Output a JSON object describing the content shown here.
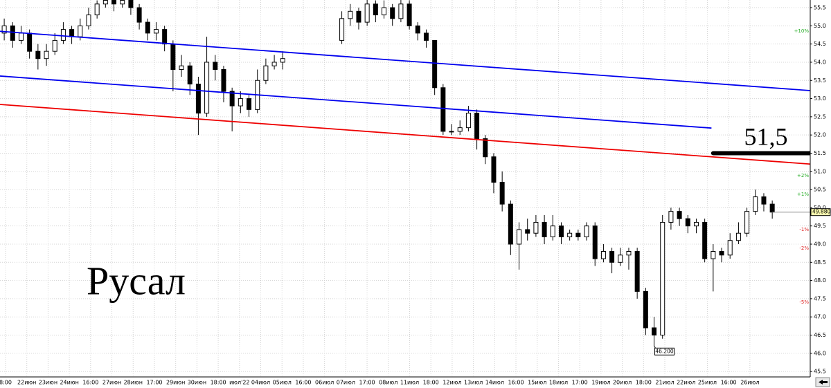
{
  "chart_data": {
    "type": "candlestick",
    "title": "Русал",
    "ylim": [
      45.35,
      55.71
    ],
    "xlim": [
      -0.5,
      95.5
    ],
    "yticks": [
      45.5,
      {
        "value": 46,
        "label": "46.0"
      },
      46.5,
      {
        "value": 47,
        "label": "47.0"
      },
      47.5,
      {
        "value": 48,
        "label": "48.0"
      },
      48.5,
      {
        "value": 49,
        "label": "49.0"
      },
      49.5,
      {
        "value": 50,
        "label": "50.0"
      },
      50.5,
      {
        "value": 51,
        "label": "51.0"
      },
      51.5,
      {
        "value": 52,
        "label": "52.0"
      },
      52.5,
      {
        "value": 53,
        "label": "53.0"
      },
      53.5,
      {
        "value": 54,
        "label": "54.0"
      },
      54.5,
      {
        "value": 55,
        "label": "55.0"
      },
      55.5
    ],
    "x_labels": [
      "8:00",
      "22июн",
      "23июн",
      "24июн",
      "16:00",
      "27июн",
      "28июн",
      "17:00",
      "29июн",
      "30июн",
      "18:00",
      "июл'22",
      "04июл",
      "05июл",
      "16:00",
      "06июл",
      "07июл",
      "17:00",
      "08июл",
      "11июл",
      "18:00",
      "12июл",
      "13июл",
      "14июл",
      "16:00",
      "15июл",
      "18июл",
      "17:00",
      "19июл",
      "20июл",
      "18:00",
      "21июл",
      "22июл",
      "25июл",
      "16:00",
      "26июл"
    ],
    "grid": true,
    "ohlc": [
      [
        54.8,
        55.2,
        54.6,
        55.0
      ],
      [
        55.0,
        55.1,
        54.4,
        54.6
      ],
      [
        54.6,
        55.0,
        54.5,
        54.8
      ],
      [
        54.8,
        54.9,
        54.1,
        54.3
      ],
      [
        54.3,
        54.5,
        53.8,
        54.1
      ],
      [
        54.1,
        54.5,
        53.9,
        54.3
      ],
      [
        54.3,
        54.8,
        54.2,
        54.6
      ],
      [
        54.6,
        55.1,
        54.5,
        54.9
      ],
      [
        54.9,
        55.0,
        54.5,
        54.7
      ],
      [
        54.7,
        55.2,
        54.6,
        55.0
      ],
      [
        55.0,
        55.5,
        54.9,
        55.3
      ],
      [
        55.3,
        55.7,
        55.2,
        55.6
      ],
      [
        55.6,
        55.9,
        55.5,
        55.7
      ],
      [
        55.7,
        55.9,
        55.4,
        55.6
      ],
      [
        55.6,
        55.9,
        55.5,
        55.7
      ],
      [
        55.7,
        55.8,
        55.3,
        55.5
      ],
      [
        55.5,
        55.6,
        54.9,
        55.1
      ],
      [
        55.1,
        55.2,
        54.6,
        54.8
      ],
      [
        54.8,
        55.1,
        54.6,
        54.9
      ],
      [
        54.9,
        55.0,
        54.3,
        54.5
      ],
      [
        54.5,
        54.6,
        53.2,
        53.8
      ],
      [
        53.8,
        54.2,
        53.6,
        53.9
      ],
      [
        53.9,
        54.0,
        53.1,
        53.4
      ],
      [
        53.4,
        53.6,
        52.0,
        52.6
      ],
      [
        52.6,
        54.7,
        52.5,
        54.0
      ],
      [
        54.0,
        54.2,
        53.5,
        53.8
      ],
      [
        53.8,
        53.9,
        52.9,
        53.2
      ],
      [
        53.2,
        53.3,
        52.1,
        52.8
      ],
      [
        52.8,
        53.2,
        52.6,
        53.0
      ],
      [
        53.0,
        53.1,
        52.5,
        52.7
      ],
      [
        52.7,
        53.8,
        52.6,
        53.5
      ],
      [
        53.5,
        54.1,
        53.4,
        53.9
      ],
      [
        53.9,
        54.2,
        53.8,
        54.0
      ],
      [
        54.0,
        54.3,
        53.8,
        54.1
      ],
      null,
      null,
      null,
      null,
      null,
      null,
      [
        54.6,
        55.4,
        54.5,
        55.2
      ],
      [
        55.2,
        55.6,
        55.0,
        55.4
      ],
      [
        55.4,
        55.5,
        54.9,
        55.1
      ],
      [
        55.1,
        55.8,
        55.0,
        55.6
      ],
      [
        55.6,
        55.7,
        55.1,
        55.3
      ],
      [
        55.3,
        55.7,
        55.2,
        55.5
      ],
      [
        55.5,
        55.6,
        55.0,
        55.2
      ],
      [
        55.2,
        55.8,
        55.1,
        55.6
      ],
      [
        55.6,
        55.7,
        54.9,
        55.0
      ],
      [
        55.0,
        55.1,
        54.6,
        54.8
      ],
      [
        54.8,
        54.9,
        54.4,
        54.6
      ],
      [
        54.6,
        54.6,
        53.1,
        53.3
      ],
      [
        53.3,
        53.4,
        52.0,
        52.1
      ],
      [
        52.1,
        52.3,
        52.0,
        52.1
      ],
      [
        52.1,
        52.4,
        52.0,
        52.2
      ],
      [
        52.2,
        52.8,
        52.1,
        52.6
      ],
      [
        52.6,
        52.7,
        51.6,
        51.9
      ],
      [
        51.9,
        52.0,
        51.2,
        51.4
      ],
      [
        51.4,
        51.5,
        50.4,
        50.7
      ],
      [
        50.7,
        51.0,
        49.9,
        50.1
      ],
      [
        50.1,
        50.2,
        48.7,
        49.0
      ],
      [
        49.0,
        49.6,
        48.3,
        49.4
      ],
      [
        49.4,
        49.7,
        49.1,
        49.3
      ],
      [
        49.3,
        49.8,
        49.2,
        49.6
      ],
      [
        49.6,
        49.8,
        49.0,
        49.2
      ],
      [
        49.2,
        49.8,
        49.1,
        49.5
      ],
      [
        49.5,
        49.6,
        49.0,
        49.2
      ],
      [
        49.2,
        49.4,
        49.1,
        49.3
      ],
      [
        49.3,
        49.4,
        49.1,
        49.2
      ],
      [
        49.2,
        49.6,
        49.1,
        49.5
      ],
      [
        49.5,
        49.6,
        48.4,
        48.6
      ],
      [
        48.6,
        49.0,
        48.5,
        48.8
      ],
      [
        48.8,
        48.9,
        48.2,
        48.5
      ],
      [
        48.5,
        48.9,
        48.4,
        48.7
      ],
      [
        48.7,
        48.9,
        48.3,
        48.8
      ],
      [
        48.8,
        48.9,
        47.5,
        47.7
      ],
      [
        47.7,
        47.8,
        46.5,
        46.7
      ],
      [
        46.7,
        47.0,
        46.2,
        46.5
      ],
      [
        46.5,
        49.8,
        46.4,
        49.6
      ],
      [
        49.6,
        50.0,
        49.4,
        49.9
      ],
      [
        49.9,
        50.0,
        49.5,
        49.7
      ],
      [
        49.7,
        49.8,
        49.3,
        49.5
      ],
      [
        49.5,
        49.7,
        49.3,
        49.6
      ],
      [
        49.6,
        49.7,
        48.5,
        48.6
      ],
      [
        48.6,
        49.0,
        47.7,
        48.8
      ],
      [
        48.8,
        48.9,
        48.5,
        48.7
      ],
      [
        48.7,
        49.3,
        48.6,
        49.1
      ],
      [
        49.1,
        49.6,
        49.0,
        49.3
      ],
      [
        49.3,
        50.0,
        49.2,
        49.9
      ],
      [
        49.9,
        50.5,
        49.8,
        50.3
      ],
      [
        50.3,
        50.4,
        49.9,
        50.1
      ],
      [
        50.1,
        50.2,
        49.7,
        49.88
      ],
      null,
      null,
      null,
      null
    ],
    "lines": [
      {
        "color": "#0000ee",
        "x": [
          -0.5,
          95.5
        ],
        "y": [
          54.85,
          53.22
        ]
      },
      {
        "color": "#0000ee",
        "x": [
          -0.5,
          83.8
        ],
        "y": [
          53.62,
          52.19
        ]
      },
      {
        "color": "#ee0000",
        "x": [
          -0.5,
          95.5
        ],
        "y": [
          52.84,
          51.2
        ]
      }
    ],
    "level": {
      "value": 51.5,
      "label": "51,5",
      "x": [
        84.0,
        95.5
      ]
    },
    "percent_marks": [
      {
        "value": 54.85,
        "label": "+10%",
        "color": "#22aa22"
      },
      {
        "value": 50.88,
        "label": "+2%",
        "color": "#22aa22"
      },
      {
        "value": 50.37,
        "label": "+1%",
        "color": "#22aa22"
      },
      {
        "value": 49.4,
        "label": "-1%",
        "color": "#dd2222"
      },
      {
        "value": 48.89,
        "label": "-2%",
        "color": "#dd2222"
      },
      {
        "value": 47.4,
        "label": "-5%",
        "color": "#dd2222"
      }
    ],
    "last_label": {
      "value": 49.88,
      "label": "49.880"
    },
    "low_label": {
      "index": 77,
      "value": 46.2,
      "label": "46.200"
    }
  }
}
